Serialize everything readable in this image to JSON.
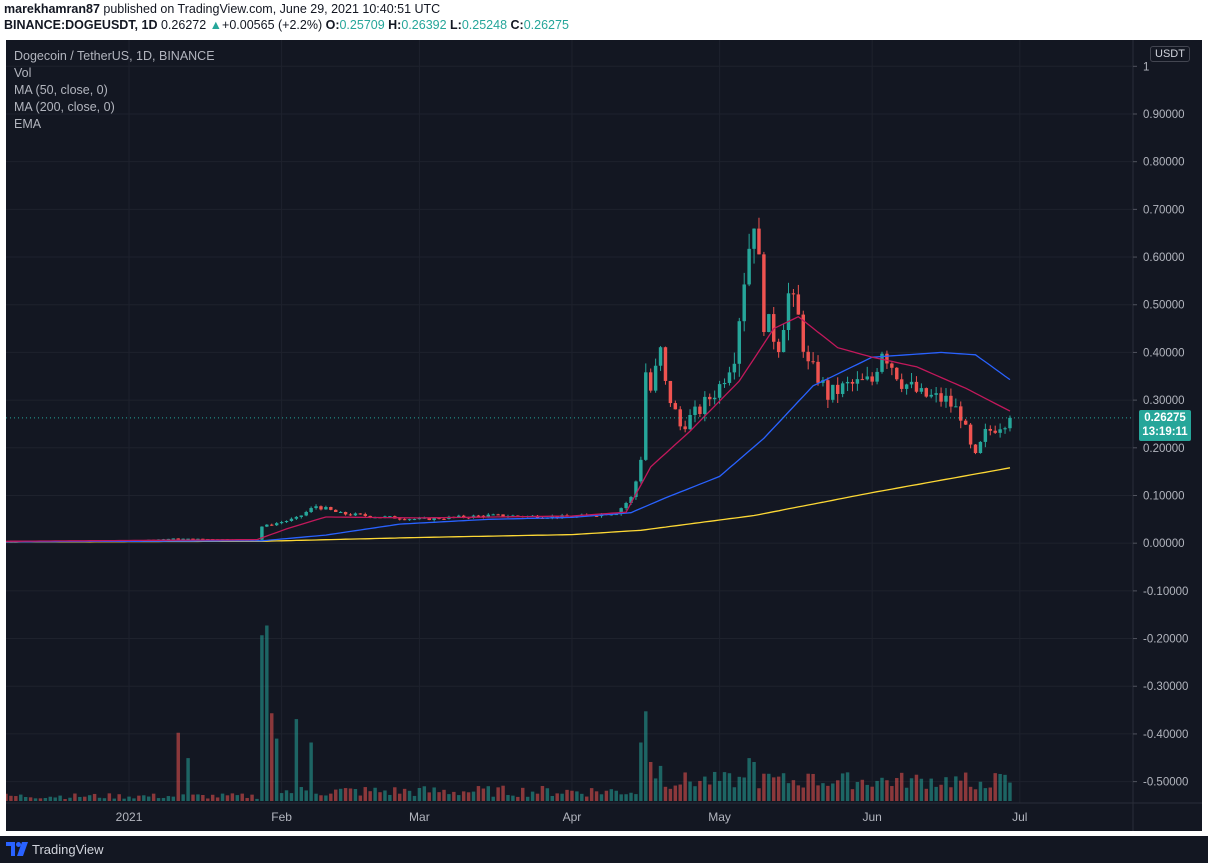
{
  "header": {
    "author": "marekhamran87",
    "published": "published on TradingView.com, June 29, 2021 10:40:51 UTC",
    "symbol": "BINANCE:DOGEUSDT, 1D",
    "last": "0.26272",
    "change": "+0.00565 (+2.2%)",
    "o_label": "O:",
    "o": "0.25709",
    "h_label": "H:",
    "h": "0.26392",
    "l_label": "L:",
    "l": "0.25248",
    "c_label": "C:",
    "c": "0.26275"
  },
  "legend": {
    "title": "Dogecoin / TetherUS, 1D, BINANCE",
    "vol": "Vol",
    "ma50": "MA (50, close, 0)",
    "ma200": "MA (200, close, 0)",
    "ema": "EMA"
  },
  "currency": "USDT",
  "price_tag": {
    "price": "0.26275",
    "countdown": "13:19:11"
  },
  "footer": {
    "brand": "TradingView"
  },
  "colors": {
    "up": "#26a69a",
    "down": "#ef5350",
    "ma50": "#2962ff",
    "ma200": "#fdd835",
    "ema": "#c2185b",
    "background": "#131722",
    "grid": "#1e222d",
    "axis_text": "#b2b5be"
  },
  "chart_data": {
    "type": "candlestick",
    "title": "Dogecoin / TetherUS, 1D, BINANCE",
    "y_ticks": [
      "1",
      "0.90000",
      "0.80000",
      "0.70000",
      "0.60000",
      "0.50000",
      "0.40000",
      "0.30000",
      "0.20000",
      "0.10000",
      "0.00000",
      "-0.10000",
      "-0.20000",
      "-0.30000",
      "-0.40000",
      "-0.50000"
    ],
    "y_tick_values": [
      1.0,
      0.9,
      0.8,
      0.7,
      0.6,
      0.5,
      0.4,
      0.3,
      0.2,
      0.1,
      0.0,
      -0.1,
      -0.2,
      -0.3,
      -0.4,
      -0.5
    ],
    "ylim": [
      -0.57,
      1.03
    ],
    "x_ticks": [
      "2021",
      "Feb",
      "Mar",
      "Apr",
      "May",
      "Jun",
      "Jul"
    ],
    "x_tick_dates": [
      "2021-01-01",
      "2021-02-01",
      "2021-03-01",
      "2021-04-01",
      "2021-05-01",
      "2021-06-01",
      "2021-07-01"
    ],
    "xlim": [
      "2020-12-07",
      "2021-07-24"
    ],
    "last_price": 0.26275,
    "price_keypoints": [
      [
        "2020-12-07",
        0.0034
      ],
      [
        "2020-12-31",
        0.0047
      ],
      [
        "2021-01-10",
        0.0095
      ],
      [
        "2021-01-27",
        0.0075
      ],
      [
        "2021-01-28",
        0.035
      ],
      [
        "2021-01-29",
        0.037
      ],
      [
        "2021-02-04",
        0.052
      ],
      [
        "2021-02-08",
        0.078
      ],
      [
        "2021-02-13",
        0.062
      ],
      [
        "2021-02-20",
        0.056
      ],
      [
        "2021-03-01",
        0.05
      ],
      [
        "2021-03-15",
        0.058
      ],
      [
        "2021-04-01",
        0.055
      ],
      [
        "2021-04-10",
        0.064
      ],
      [
        "2021-04-13",
        0.095
      ],
      [
        "2021-04-14",
        0.13
      ],
      [
        "2021-04-15",
        0.18
      ],
      [
        "2021-04-16",
        0.36
      ],
      [
        "2021-04-17",
        0.32
      ],
      [
        "2021-04-19",
        0.4
      ],
      [
        "2021-04-20",
        0.33
      ],
      [
        "2021-04-23",
        0.245
      ],
      [
        "2021-04-27",
        0.28
      ],
      [
        "2021-05-01",
        0.33
      ],
      [
        "2021-05-04",
        0.4
      ],
      [
        "2021-05-06",
        0.56
      ],
      [
        "2021-05-08",
        0.69
      ],
      [
        "2021-05-10",
        0.47
      ],
      [
        "2021-05-13",
        0.42
      ],
      [
        "2021-05-15",
        0.52
      ],
      [
        "2021-05-17",
        0.47
      ],
      [
        "2021-05-19",
        0.37
      ],
      [
        "2021-05-21",
        0.35
      ],
      [
        "2021-05-23",
        0.31
      ],
      [
        "2021-05-27",
        0.33
      ],
      [
        "2021-06-01",
        0.34
      ],
      [
        "2021-06-03",
        0.41
      ],
      [
        "2021-06-07",
        0.34
      ],
      [
        "2021-06-11",
        0.31
      ],
      [
        "2021-06-16",
        0.3
      ],
      [
        "2021-06-19",
        0.27
      ],
      [
        "2021-06-21",
        0.2
      ],
      [
        "2021-06-22",
        0.18
      ],
      [
        "2021-06-24",
        0.23
      ],
      [
        "2021-06-29",
        0.263
      ]
    ],
    "ma200_keypoints": [
      [
        "2020-12-07",
        0.0025
      ],
      [
        "2021-01-28",
        0.004
      ],
      [
        "2021-03-01",
        0.012
      ],
      [
        "2021-04-01",
        0.018
      ],
      [
        "2021-04-15",
        0.027
      ],
      [
        "2021-05-08",
        0.058
      ],
      [
        "2021-06-01",
        0.106
      ],
      [
        "2021-06-29",
        0.158
      ]
    ],
    "ma50_keypoints": [
      [
        "2020-12-07",
        0.003
      ],
      [
        "2021-01-28",
        0.005
      ],
      [
        "2021-02-10",
        0.017
      ],
      [
        "2021-02-25",
        0.04
      ],
      [
        "2021-03-15",
        0.05
      ],
      [
        "2021-04-01",
        0.054
      ],
      [
        "2021-04-13",
        0.064
      ],
      [
        "2021-04-20",
        0.095
      ],
      [
        "2021-05-01",
        0.14
      ],
      [
        "2021-05-10",
        0.22
      ],
      [
        "2021-05-20",
        0.33
      ],
      [
        "2021-06-01",
        0.39
      ],
      [
        "2021-06-15",
        0.4
      ],
      [
        "2021-06-22",
        0.395
      ],
      [
        "2021-06-29",
        0.343
      ]
    ],
    "ema_keypoints": [
      [
        "2020-12-07",
        0.004
      ],
      [
        "2021-01-27",
        0.0075
      ],
      [
        "2021-02-02",
        0.03
      ],
      [
        "2021-02-10",
        0.055
      ],
      [
        "2021-03-01",
        0.053
      ],
      [
        "2021-04-01",
        0.057
      ],
      [
        "2021-04-12",
        0.065
      ],
      [
        "2021-04-17",
        0.16
      ],
      [
        "2021-04-25",
        0.235
      ],
      [
        "2021-05-05",
        0.34
      ],
      [
        "2021-05-12",
        0.45
      ],
      [
        "2021-05-17",
        0.475
      ],
      [
        "2021-05-25",
        0.41
      ],
      [
        "2021-06-01",
        0.39
      ],
      [
        "2021-06-10",
        0.37
      ],
      [
        "2021-06-20",
        0.325
      ],
      [
        "2021-06-29",
        0.277
      ]
    ],
    "volume_spikes": [
      [
        "2021-01-11",
        0.35
      ],
      [
        "2021-01-13",
        0.22
      ],
      [
        "2021-01-28",
        0.85
      ],
      [
        "2021-01-29",
        0.9
      ],
      [
        "2021-01-30",
        0.45
      ],
      [
        "2021-01-31",
        0.32
      ],
      [
        "2021-02-04",
        0.42
      ],
      [
        "2021-02-07",
        0.3
      ],
      [
        "2021-04-15",
        0.3
      ],
      [
        "2021-04-16",
        0.46
      ],
      [
        "2021-04-17",
        0.2
      ],
      [
        "2021-04-19",
        0.18
      ],
      [
        "2021-05-07",
        0.22
      ],
      [
        "2021-05-08",
        0.2
      ],
      [
        "2021-05-10",
        0.14
      ],
      [
        "2021-05-19",
        0.14
      ],
      [
        "2021-06-22",
        0.06
      ]
    ]
  }
}
